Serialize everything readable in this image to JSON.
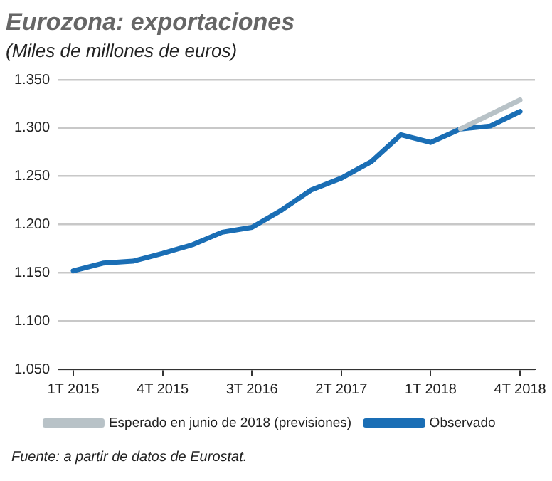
{
  "chart_data": {
    "type": "line",
    "title": "Eurozona: exportaciones",
    "subtitle": "(Miles de millones de euros)",
    "categories": [
      "1T 2015",
      null,
      null,
      "4T 2015",
      null,
      null,
      "3T 2016",
      null,
      null,
      "2T 2017",
      null,
      null,
      "1T 2018",
      null,
      null,
      "4T 2018"
    ],
    "series": [
      {
        "name": "Esperado en junio de 2018 (previsiones)",
        "color": "#b8c2c7",
        "values": [
          null,
          null,
          null,
          null,
          null,
          null,
          null,
          null,
          null,
          null,
          null,
          null,
          null,
          1299,
          1314,
          1329
        ]
      },
      {
        "name": "Observado",
        "color": "#1a6eb5",
        "values": [
          1152,
          1160,
          1162,
          1170,
          1179,
          1192,
          1197,
          1215,
          1236,
          1248,
          1265,
          1293,
          1285,
          1299,
          1302,
          1317
        ]
      }
    ],
    "ylim": [
      1050,
      1350
    ],
    "yticks": [
      {
        "value": 1050,
        "label": "1.050"
      },
      {
        "value": 1100,
        "label": "1.100"
      },
      {
        "value": 1150,
        "label": "1.150"
      },
      {
        "value": 1200,
        "label": "1.200"
      },
      {
        "value": 1250,
        "label": "1.250"
      },
      {
        "value": 1300,
        "label": "1.300"
      },
      {
        "value": 1350,
        "label": "1.350"
      }
    ],
    "grid": "y",
    "legend": "bottom",
    "marker": "none",
    "line_style": "solid",
    "annotations": [
      "Fuente: a partir de datos de Eurostat."
    ]
  }
}
